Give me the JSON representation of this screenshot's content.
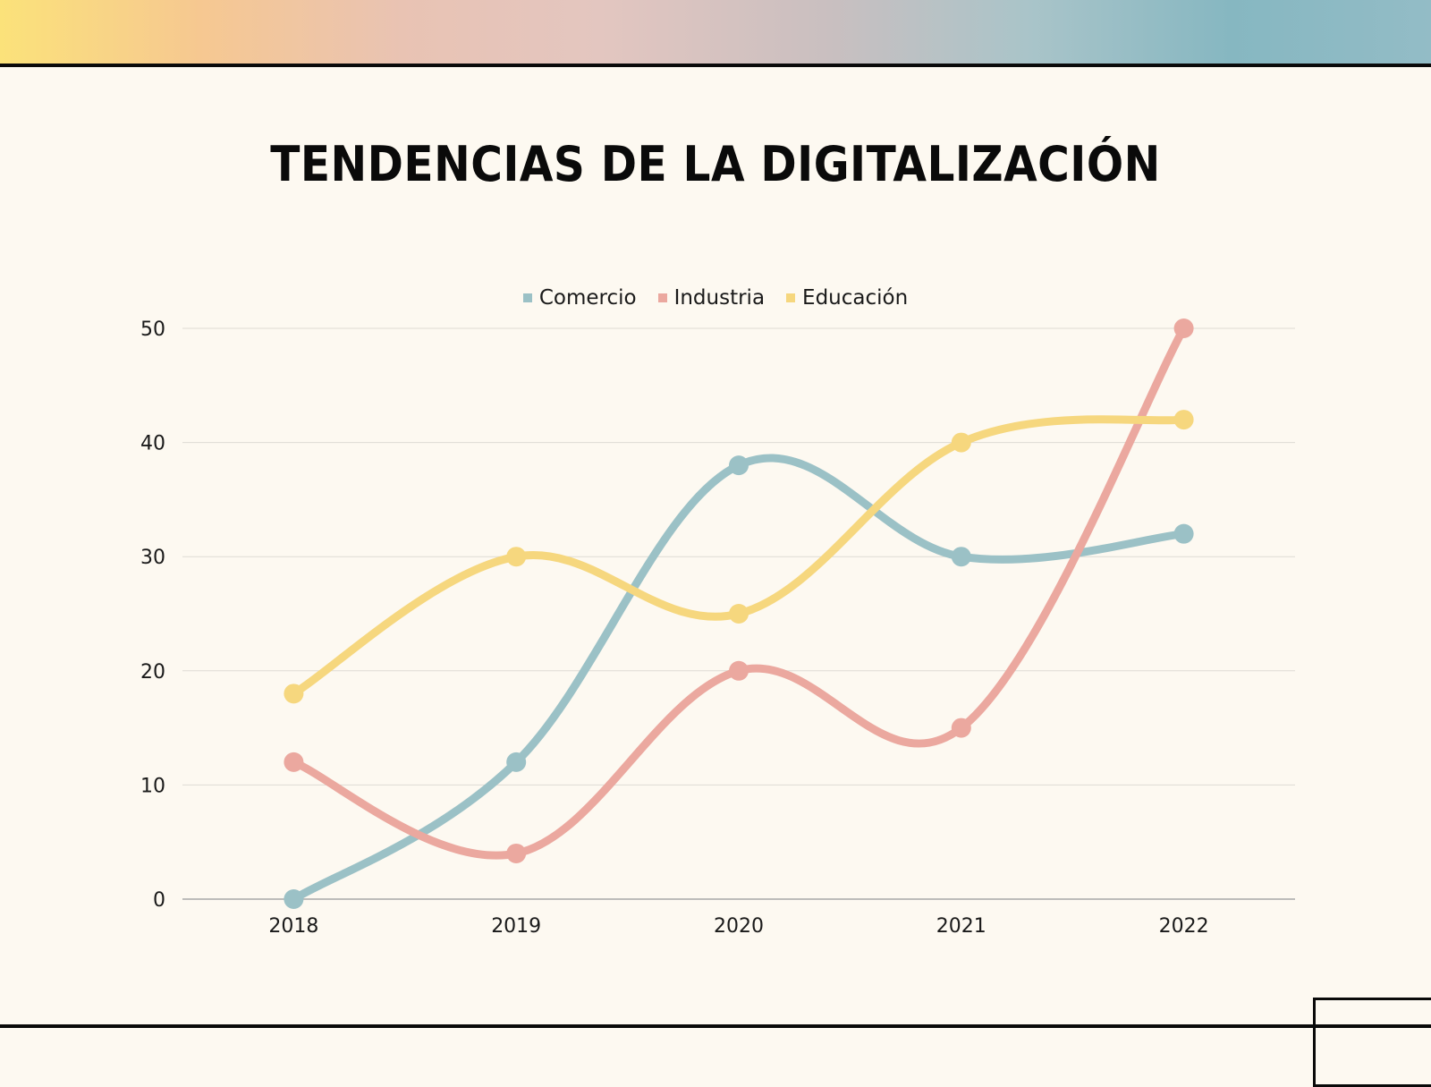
{
  "title": "TENDENCIAS DE LA DIGITALIZACIÓN",
  "chart_data": {
    "type": "line",
    "title": "TENDENCIAS DE LA DIGITALIZACIÓN",
    "x": [
      "2018",
      "2019",
      "2020",
      "2021",
      "2022"
    ],
    "ylim": [
      0,
      50
    ],
    "yticks": [
      "0",
      "10",
      "20",
      "30",
      "40",
      "50"
    ],
    "grid": true,
    "legend_position": "top",
    "series": [
      {
        "name": "Comercio",
        "color": "#9bc1c6",
        "values": [
          0,
          12,
          38,
          30,
          32
        ]
      },
      {
        "name": "Industria",
        "color": "#eba89f",
        "values": [
          12,
          4,
          20,
          15,
          50
        ]
      },
      {
        "name": "Educación",
        "color": "#f6d77e",
        "values": [
          18,
          30,
          25,
          40,
          42
        ]
      }
    ]
  }
}
